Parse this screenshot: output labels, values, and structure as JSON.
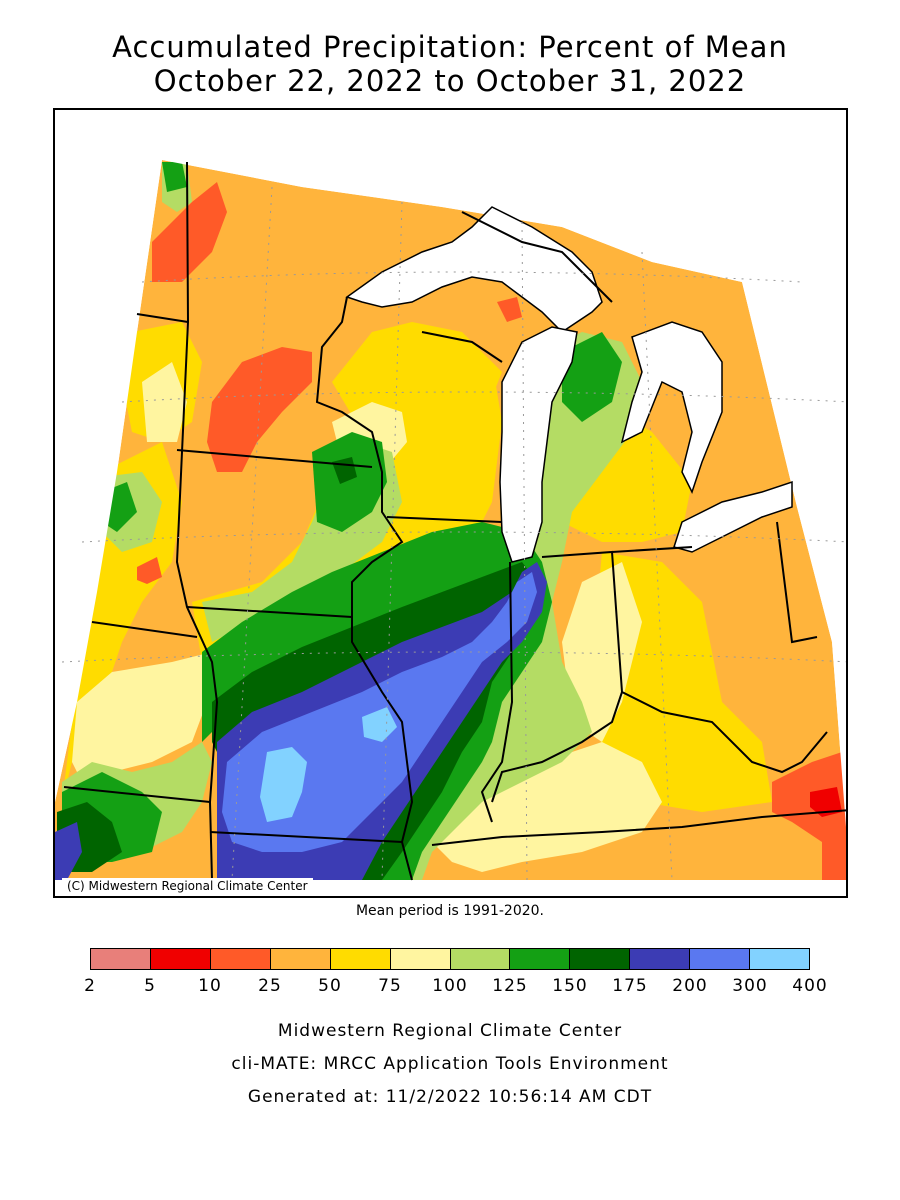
{
  "title": {
    "line1": "Accumulated Precipitation: Percent of Mean",
    "line2": "October 22, 2022 to October 31, 2022"
  },
  "map": {
    "copyright": "(C) Midwestern Regional Climate Center",
    "lake_color": "#ffffff",
    "border_color": "#000000"
  },
  "mean_period": "Mean period is 1991-2020.",
  "legend": {
    "colors": [
      "#e87f7a",
      "#f00000",
      "#ff5a28",
      "#ffb43c",
      "#ffdc00",
      "#fff5a0",
      "#b4dc64",
      "#14a014",
      "#006400",
      "#3c3cb4",
      "#5a78f0",
      "#82d2ff"
    ],
    "ticks": [
      "2",
      "5",
      "10",
      "25",
      "50",
      "75",
      "100",
      "125",
      "150",
      "175",
      "200",
      "300",
      "400"
    ]
  },
  "credits": {
    "line1": "Midwestern Regional Climate Center",
    "line2": "cli-MATE: MRCC Application Tools Environment",
    "line3": "Generated at: 11/2/2022 10:56:14 AM CDT"
  }
}
